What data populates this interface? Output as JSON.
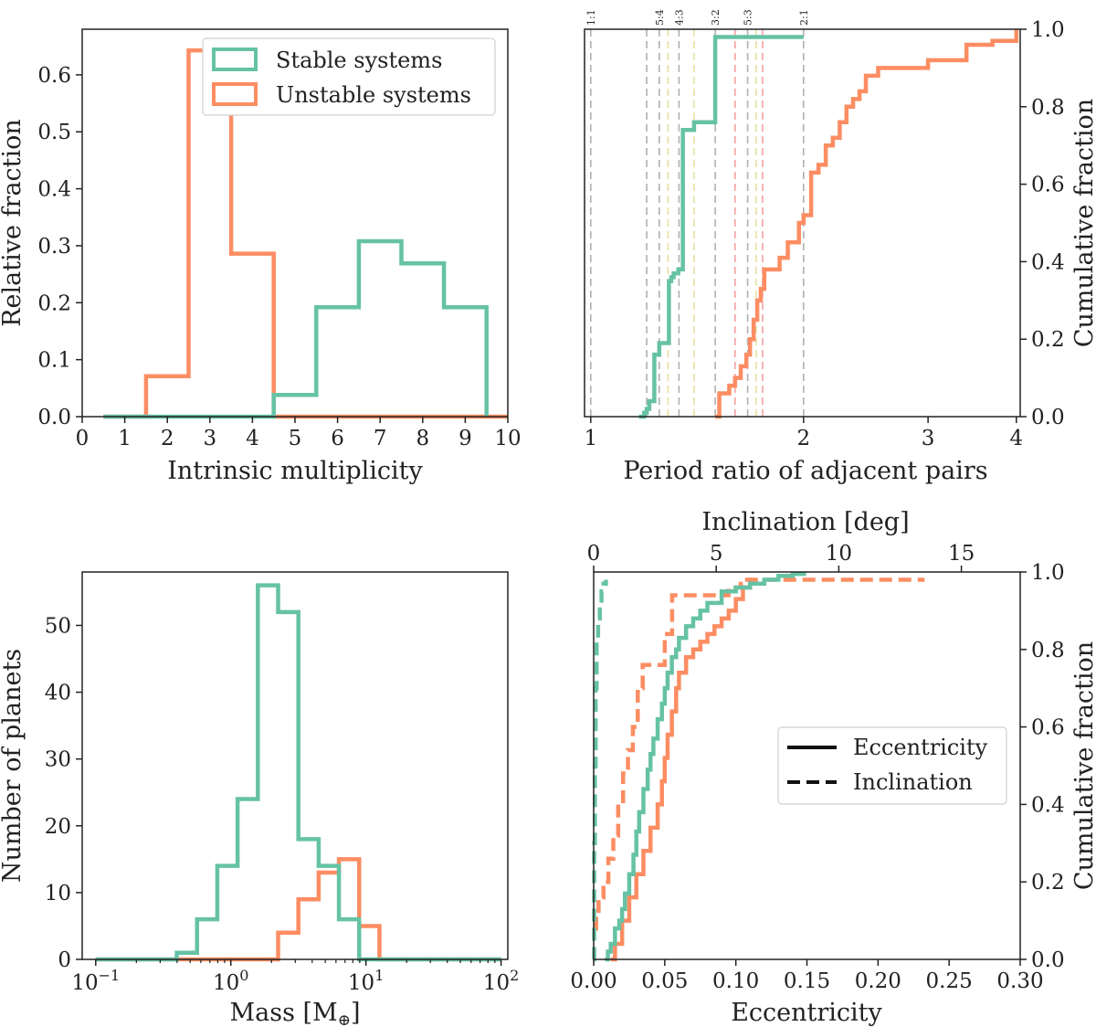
{
  "colors": {
    "stable": "#66c2a5",
    "unstable": "#fc8d62",
    "frame": "#222222"
  },
  "chart_data": [
    {
      "type": "histogram",
      "xlabel": "Intrinsic multiplicity",
      "ylabel": "Relative fraction",
      "xlim": [
        0,
        10
      ],
      "ylim": [
        0,
        0.68
      ],
      "xticks": [
        "0",
        "1",
        "2",
        "3",
        "4",
        "5",
        "6",
        "7",
        "8",
        "9",
        "10"
      ],
      "yticks": [
        "0.0",
        "0.1",
        "0.2",
        "0.3",
        "0.4",
        "0.5",
        "0.6"
      ],
      "legend": {
        "placement": "top-right",
        "entries": [
          "Stable systems",
          "Unstable systems"
        ]
      },
      "series": [
        {
          "name": "Stable systems",
          "bin_edges": [
            0.5,
            1.5,
            2.5,
            3.5,
            4.5,
            5.5,
            6.5,
            7.5,
            8.5,
            9.5
          ],
          "values": [
            0,
            0,
            0,
            0,
            0.038,
            0.192,
            0.308,
            0.269,
            0.192
          ]
        },
        {
          "name": "Unstable systems",
          "bin_edges": [
            0.5,
            1.5,
            2.5,
            3.5,
            4.5,
            5.5,
            6.5,
            7.5,
            8.5,
            9.5,
            10
          ],
          "values": [
            0,
            0.071,
            0.643,
            0.286,
            0,
            0,
            0,
            0,
            0,
            0
          ]
        }
      ]
    },
    {
      "type": "cdf",
      "xlabel": "Period ratio of adjacent pairs",
      "ylabel": "Cumulative fraction",
      "xscale": "log",
      "xlim": [
        0.98,
        4.05
      ],
      "ylim": [
        0,
        1
      ],
      "xticks": [
        "1",
        "2",
        "3",
        "4"
      ],
      "yticks": [
        "0.0",
        "0.2",
        "0.4",
        "0.6",
        "0.8",
        "1.0"
      ],
      "resonances": [
        {
          "label": "1:1",
          "ratio": 1.0,
          "color": "#b0b0b0"
        },
        {
          "label": "5:4",
          "ratio": 1.25,
          "color": "#b0b0b0"
        },
        {
          "label": "4:3",
          "ratio": 1.333,
          "color": "#b0b0b0"
        },
        {
          "label": "3:2",
          "ratio": 1.5,
          "color": "#b0b0b0"
        },
        {
          "label": "5:3",
          "ratio": 1.667,
          "color": "#b0b0b0"
        },
        {
          "label": "2:1",
          "ratio": 2.0,
          "color": "#b0b0b0"
        }
      ],
      "extra_lines": [
        {
          "ratio": 1.2,
          "color": "#b0b0b0"
        },
        {
          "ratio": 1.286,
          "color": "#e6e0a0"
        },
        {
          "ratio": 1.4,
          "color": "#e6e0a0"
        },
        {
          "ratio": 1.6,
          "color": "#f4a0a0"
        },
        {
          "ratio": 1.75,
          "color": "#f4a0a0"
        },
        {
          "ratio": 1.714,
          "color": "#e6e0a0"
        }
      ],
      "series": [
        {
          "name": "Stable systems",
          "x": [
            1.17,
            1.19,
            1.2,
            1.21,
            1.22,
            1.23,
            1.25,
            1.27,
            1.29,
            1.3,
            1.31,
            1.33,
            1.35,
            1.4,
            1.5,
            1.6,
            1.7,
            1.8,
            2.0
          ],
          "y": [
            0.0,
            0.01,
            0.02,
            0.04,
            0.04,
            0.16,
            0.19,
            0.19,
            0.35,
            0.36,
            0.37,
            0.38,
            0.74,
            0.76,
            0.98,
            0.98,
            0.98,
            0.98,
            0.98
          ]
        },
        {
          "name": "Unstable systems",
          "x": [
            1.5,
            1.52,
            1.57,
            1.6,
            1.63,
            1.66,
            1.68,
            1.7,
            1.72,
            1.74,
            1.76,
            1.8,
            1.85,
            1.9,
            1.97,
            2.0,
            2.05,
            2.1,
            2.15,
            2.2,
            2.25,
            2.3,
            2.35,
            2.4,
            2.45,
            2.55,
            2.8,
            3.0,
            3.4,
            3.7,
            4.0
          ],
          "y": [
            0.0,
            0.06,
            0.08,
            0.1,
            0.13,
            0.16,
            0.2,
            0.25,
            0.3,
            0.33,
            0.38,
            0.38,
            0.41,
            0.45,
            0.5,
            0.52,
            0.63,
            0.65,
            0.7,
            0.72,
            0.76,
            0.8,
            0.82,
            0.84,
            0.88,
            0.9,
            0.9,
            0.92,
            0.96,
            0.97,
            1.0
          ]
        }
      ]
    },
    {
      "type": "histogram",
      "xlabel": "Mass [M",
      "xlabel_sub": "⊕",
      "xlabel_end": "]",
      "ylabel": "Number of planets",
      "xscale": "log",
      "xlim_log10": [
        -1.1,
        2.05
      ],
      "ylim": [
        0,
        58
      ],
      "xticks": [
        {
          "base": "10",
          "exp": "−1"
        },
        {
          "base": "10",
          "exp": "0"
        },
        {
          "base": "10",
          "exp": "1"
        },
        {
          "base": "10",
          "exp": "2"
        }
      ],
      "yticks": [
        "0",
        "10",
        "20",
        "30",
        "40",
        "50"
      ],
      "series": [
        {
          "name": "Stable systems",
          "bin_edges_log10": [
            -1.0,
            -0.85,
            -0.7,
            -0.55,
            -0.4,
            -0.25,
            -0.1,
            0.05,
            0.2,
            0.35,
            0.5,
            0.65,
            0.8,
            0.95,
            1.1,
            1.25,
            1.4,
            1.55,
            1.7,
            1.85,
            2.0
          ],
          "values": [
            0,
            0,
            0,
            0,
            1,
            6,
            14,
            24,
            56,
            52,
            18,
            14,
            6,
            0,
            0,
            0,
            0,
            0,
            0,
            0
          ]
        },
        {
          "name": "Unstable systems",
          "bin_edges_log10": [
            -1.0,
            -0.85,
            -0.7,
            -0.55,
            -0.4,
            -0.25,
            -0.1,
            0.05,
            0.2,
            0.35,
            0.5,
            0.65,
            0.8,
            0.95,
            1.1,
            1.25,
            1.4,
            1.55,
            1.7,
            1.85,
            2.0
          ],
          "values": [
            0,
            0,
            0,
            0,
            0,
            0,
            0,
            0,
            0,
            4,
            9,
            13,
            15,
            5,
            0,
            0,
            0,
            0,
            0,
            0
          ]
        }
      ]
    },
    {
      "type": "cdf",
      "xlabel": "Eccentricity",
      "xlabel_top": "Inclination [deg]",
      "ylabel": "Cumulative fraction",
      "xlim": [
        0,
        0.3
      ],
      "xlim_top": [
        0,
        17.4
      ],
      "ylim": [
        0,
        1
      ],
      "xticks": [
        "0.00",
        "0.05",
        "0.10",
        "0.15",
        "0.20",
        "0.25",
        "0.30"
      ],
      "xticks_top": [
        "0",
        "5",
        "10",
        "15"
      ],
      "yticks": [
        "0.0",
        "0.2",
        "0.4",
        "0.6",
        "0.8",
        "1.0"
      ],
      "legend": {
        "placement": "center-right",
        "entries": [
          "Eccentricity",
          "Inclination"
        ]
      },
      "series": [
        {
          "name": "Stable eccentricity",
          "axis": "bottom",
          "style": "solid",
          "x": [
            0.008,
            0.01,
            0.012,
            0.015,
            0.018,
            0.02,
            0.022,
            0.025,
            0.028,
            0.03,
            0.032,
            0.035,
            0.038,
            0.04,
            0.042,
            0.045,
            0.048,
            0.05,
            0.052,
            0.055,
            0.058,
            0.06,
            0.065,
            0.07,
            0.075,
            0.08,
            0.09,
            0.1,
            0.11,
            0.12,
            0.13,
            0.14,
            0.148
          ],
          "y": [
            0.0,
            0.02,
            0.04,
            0.08,
            0.1,
            0.13,
            0.17,
            0.22,
            0.27,
            0.33,
            0.38,
            0.44,
            0.49,
            0.53,
            0.57,
            0.62,
            0.66,
            0.7,
            0.74,
            0.78,
            0.8,
            0.83,
            0.86,
            0.88,
            0.9,
            0.92,
            0.95,
            0.96,
            0.97,
            0.98,
            0.99,
            0.995,
            1.0
          ]
        },
        {
          "name": "Unstable eccentricity",
          "axis": "bottom",
          "style": "solid",
          "x": [
            0.012,
            0.015,
            0.02,
            0.025,
            0.03,
            0.035,
            0.04,
            0.045,
            0.048,
            0.05,
            0.052,
            0.055,
            0.058,
            0.06,
            0.065,
            0.07,
            0.075,
            0.08,
            0.085,
            0.09,
            0.095,
            0.1,
            0.105,
            0.11,
            0.112
          ],
          "y": [
            0.0,
            0.04,
            0.1,
            0.16,
            0.22,
            0.28,
            0.34,
            0.4,
            0.46,
            0.52,
            0.58,
            0.64,
            0.7,
            0.74,
            0.78,
            0.8,
            0.82,
            0.84,
            0.86,
            0.88,
            0.9,
            0.93,
            0.96,
            0.98,
            0.98
          ]
        },
        {
          "name": "Stable inclination",
          "axis": "top",
          "style": "dashed",
          "x": [
            0.0,
            0.02,
            0.05,
            0.08,
            0.12,
            0.18,
            0.25,
            0.32,
            0.4,
            0.5
          ],
          "y": [
            0.0,
            0.3,
            0.5,
            0.7,
            0.82,
            0.88,
            0.92,
            0.95,
            0.97,
            0.98
          ]
        },
        {
          "name": "Unstable inclination",
          "axis": "top",
          "style": "dashed",
          "x": [
            0.05,
            0.1,
            0.2,
            0.4,
            0.6,
            0.8,
            1.0,
            1.2,
            1.4,
            1.6,
            1.8,
            2.0,
            2.3,
            2.6,
            2.9,
            3.2,
            3.5,
            4.0,
            4.5,
            5.0,
            5.5,
            6.0,
            6.5,
            8.0,
            10.0,
            13.5
          ],
          "y": [
            0.08,
            0.12,
            0.16,
            0.2,
            0.26,
            0.32,
            0.4,
            0.48,
            0.54,
            0.6,
            0.7,
            0.76,
            0.76,
            0.76,
            0.84,
            0.94,
            0.94,
            0.94,
            0.94,
            0.94,
            0.96,
            0.98,
            0.98,
            0.98,
            0.98,
            0.98
          ]
        }
      ]
    }
  ]
}
